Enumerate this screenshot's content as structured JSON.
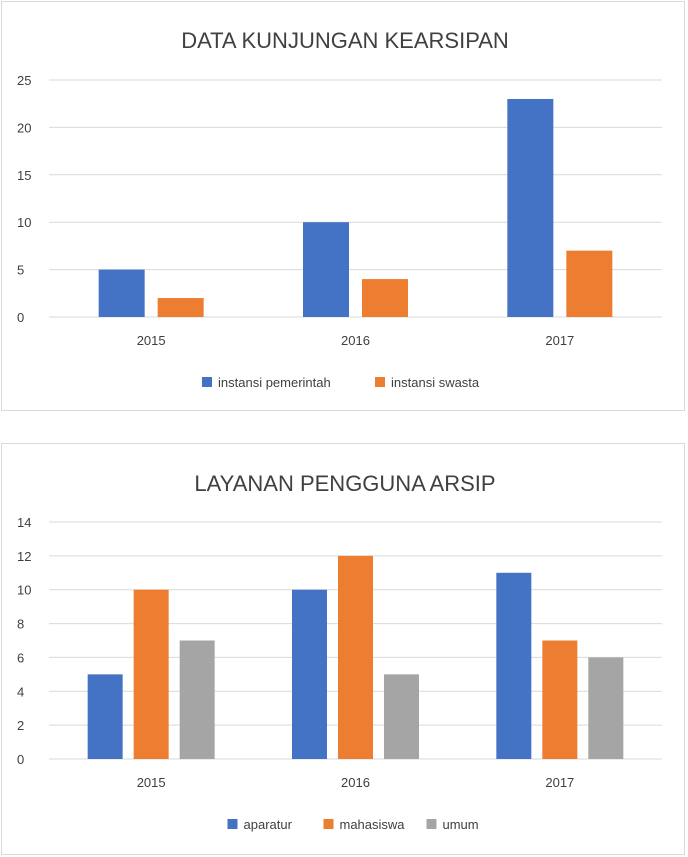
{
  "chart_data": [
    {
      "type": "bar",
      "title": "DATA KUNJUNGAN KEARSIPAN",
      "categories": [
        "2015",
        "2016",
        "2017"
      ],
      "series": [
        {
          "name": "instansi pemerintah",
          "values": [
            5,
            10,
            23
          ],
          "color": "#4472C4"
        },
        {
          "name": "instansi swasta",
          "values": [
            2,
            4,
            7
          ],
          "color": "#ED7D31"
        }
      ],
      "ylim": [
        0,
        25
      ],
      "yticks": [
        "0",
        "5",
        "10",
        "15",
        "20",
        "25"
      ],
      "grid": true,
      "legend": "bottom"
    },
    {
      "type": "bar",
      "title": "LAYANAN PENGGUNA ARSIP",
      "categories": [
        "2015",
        "2016",
        "2017"
      ],
      "series": [
        {
          "name": "aparatur",
          "values": [
            5,
            10,
            11
          ],
          "color": "#4472C4"
        },
        {
          "name": "mahasiswa",
          "values": [
            10,
            12,
            7
          ],
          "color": "#ED7D31"
        },
        {
          "name": "umum",
          "values": [
            7,
            5,
            6
          ],
          "color": "#A5A5A5"
        }
      ],
      "ylim": [
        0,
        14
      ],
      "yticks": [
        "0",
        "2",
        "4",
        "6",
        "8",
        "10",
        "12",
        "14"
      ],
      "grid": true,
      "legend": "bottom"
    }
  ]
}
